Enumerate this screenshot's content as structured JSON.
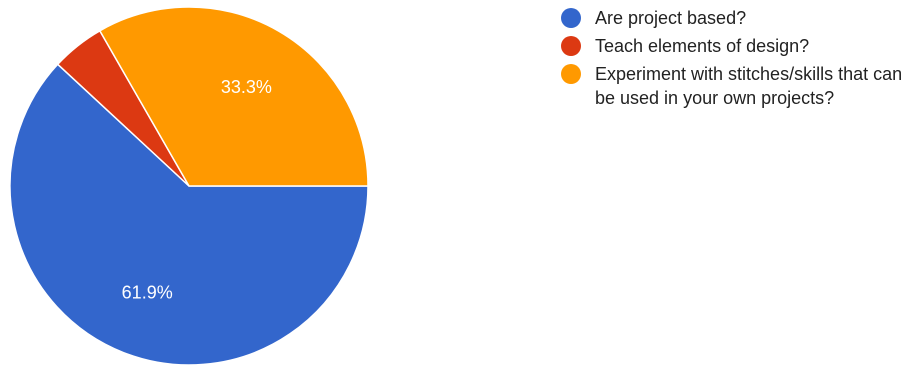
{
  "chart_data": {
    "type": "pie",
    "title": "",
    "legend_position": "right",
    "slices": [
      {
        "name": "Are project based?",
        "value": 61.9,
        "label": "61.9%",
        "color": "#3366CC"
      },
      {
        "name": "Teach elements of design?",
        "value": 4.8,
        "label": "",
        "color": "#DC3912"
      },
      {
        "name": "Experiment with stitches/skills that can be used in your own projects?",
        "value": 33.3,
        "label": "33.3%",
        "color": "#FF9900"
      }
    ]
  }
}
